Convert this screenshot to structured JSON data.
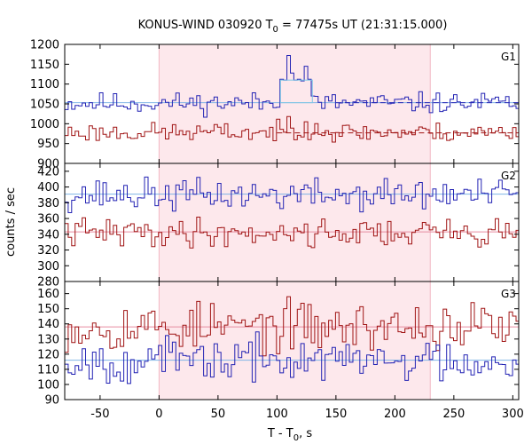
{
  "chart_data": {
    "type": "line",
    "title_prefix": "KONUS-WIND 030920 T",
    "title_sub": "0",
    "title_suffix": " = 77475s UT (21:31:15.000)",
    "xlabel_prefix": "T - T",
    "xlabel_sub": "0",
    "xlabel_suffix": ", s",
    "ylabel": "counts / sec",
    "xlim": [
      -80,
      305
    ],
    "x_ticks": [
      -50,
      0,
      50,
      100,
      150,
      200,
      250,
      300
    ],
    "highlight_interval": [
      0,
      230
    ],
    "bin_width_s": 2.944,
    "colors": {
      "blue": "#2323b4",
      "red": "#a01414",
      "bg_blue": "#7fb4e6",
      "bg_red": "#e68ca0",
      "highlight": "#fde8ec",
      "excess_box": "#7fc8e6"
    },
    "panels": [
      {
        "label": "G1",
        "ylim": [
          900,
          1200
        ],
        "y_ticks": [
          900,
          950,
          1000,
          1050,
          1100,
          1150,
          1200
        ],
        "series": [
          {
            "color_key": "blue",
            "mean": 1052,
            "spread": 13,
            "seed": 11,
            "spikes": [
              {
                "x": 102,
                "y": 1112
              },
              {
                "x": 105,
                "y": 1110
              },
              {
                "x": 108,
                "y": 1172
              },
              {
                "x": 111,
                "y": 1128
              },
              {
                "x": 114,
                "y": 1110
              },
              {
                "x": 117,
                "y": 1112
              },
              {
                "x": 120,
                "y": 1108
              },
              {
                "x": 123,
                "y": 1145
              },
              {
                "x": 126,
                "y": 1112
              },
              {
                "x": 129,
                "y": 1070
              }
            ]
          },
          {
            "color_key": "red",
            "mean": 978,
            "spread": 12,
            "seed": 23,
            "spikes": [
              {
                "x": 108,
                "y": 1018
              },
              {
                "x": 123,
                "y": 1005
              },
              {
                "x": 132,
                "y": 1000
              }
            ]
          }
        ],
        "background_lines": [
          {
            "color_key": "bg_blue",
            "y": 1053,
            "dashed": false
          },
          {
            "color_key": "red",
            "y": 977,
            "dashed": true,
            "from": 100
          },
          {
            "color_key": "blue",
            "y": 1053,
            "dashed": true,
            "from": 150
          }
        ],
        "excess_box": {
          "x0": 103,
          "x1": 130,
          "y": 1110
        }
      },
      {
        "label": "G2",
        "ylim": [
          280,
          430
        ],
        "y_ticks": [
          280,
          300,
          320,
          340,
          360,
          380,
          400,
          420
        ],
        "series": [
          {
            "color_key": "blue",
            "mean": 390,
            "spread": 10,
            "seed": 37,
            "spikes": []
          },
          {
            "color_key": "red",
            "mean": 342,
            "spread": 9,
            "seed": 41,
            "spikes": []
          }
        ],
        "background_lines": [
          {
            "color_key": "bg_blue",
            "y": 391,
            "dashed": false
          },
          {
            "color_key": "bg_red",
            "y": 343,
            "dashed": false
          }
        ]
      },
      {
        "label": "G3",
        "ylim": [
          90,
          168
        ],
        "y_ticks": [
          90,
          100,
          110,
          120,
          130,
          140,
          150,
          160
        ],
        "series": [
          {
            "color_key": "red",
            "mean": 138,
            "spread": 8,
            "seed": 53,
            "spikes": []
          },
          {
            "color_key": "blue",
            "mean": 116,
            "spread": 7,
            "seed": 67,
            "spikes": []
          }
        ],
        "background_lines": [
          {
            "color_key": "bg_red",
            "y": 138,
            "dashed": false
          },
          {
            "color_key": "bg_blue",
            "y": 116,
            "dashed": false
          }
        ]
      }
    ]
  }
}
